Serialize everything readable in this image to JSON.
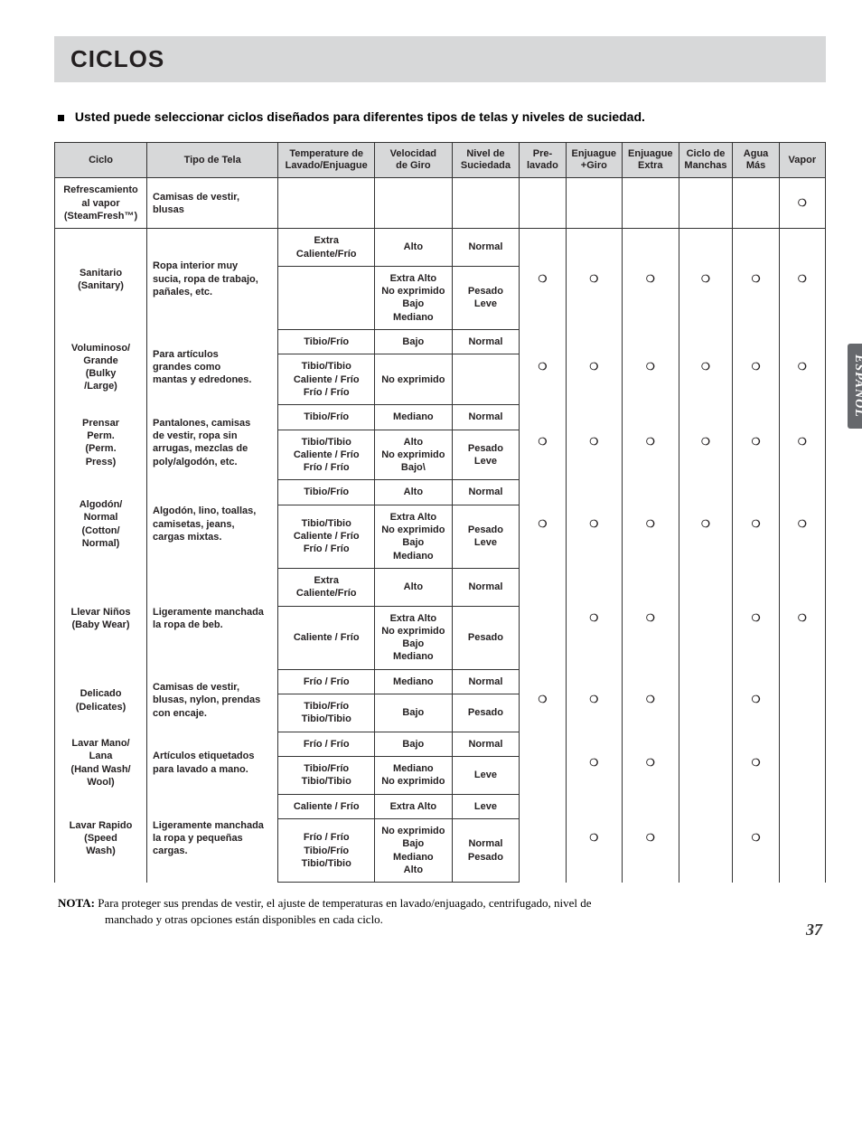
{
  "banner_title": "CICLOS",
  "intro": "Usted puede seleccionar ciclos diseñados para diferentes tipos de telas y niveles de suciedad.",
  "side_tab": "ESPAÑOL",
  "page_number": "37",
  "note_bold": "NOTA:",
  "note_rest": " Para proteger sus prendas de vestir, el ajuste de temperaturas en lavado/enjuagado, centrifugado, nivel de",
  "note_line2": "manchado y otras opciones están disponibles en cada ciclo.",
  "columns": {
    "ciclo": "Ciclo",
    "tela": "Tipo de Tela",
    "temp": "Temperature de\nLavado/Enjuague",
    "speed": "Velocidad\nde Giro",
    "soil": "Nivel de\nSuciedada",
    "prewash": "Pre-\nlavado",
    "rinse_spin": "Enjuague\n+Giro",
    "extra_rinse": "Enjuague\nExtra",
    "stain": "Ciclo de\nManchas",
    "water_plus": "Agua\nMás",
    "steam": "Vapor"
  },
  "radio_char": "❍",
  "rows": [
    {
      "single": true,
      "cycle": "Refrescamiento\nal vapor\n(SteamFresh™)",
      "fabric": "Camisas de vestir,\nblusas",
      "temp": "",
      "speed": "",
      "soil": "",
      "opts": [
        "",
        "",
        "",
        "",
        "",
        "❍"
      ]
    },
    {
      "cycle": "Sanitario\n(Sanitary)",
      "fabric": "Ropa interior muy\nsucia, ropa de trabajo,\npañales, etc.",
      "r1": {
        "temp": "Extra Caliente/Frío",
        "speed": "Alto",
        "soil": "Normal"
      },
      "r2": {
        "temp": "",
        "speed": "Extra Alto\nNo exprimido\nBajo\nMediano",
        "soil": "Pesado\nLeve"
      },
      "opts": [
        "❍",
        "❍",
        "❍",
        "❍",
        "❍",
        "❍"
      ]
    },
    {
      "cycle": "Voluminoso/\nGrande\n(Bulky\n/Large)",
      "fabric": "Para artículos\ngrandes como\nmantas y edredones.",
      "r1": {
        "temp": "Tibio/Frío",
        "speed": "Bajo",
        "soil": "Normal"
      },
      "r2": {
        "temp": "Tibio/Tibio\nCaliente / Frío\nFrío / Frío",
        "speed": "No exprimido",
        "soil": ""
      },
      "opts": [
        "❍",
        "❍",
        "❍",
        "❍",
        "❍",
        "❍"
      ]
    },
    {
      "cycle": "Prensar\nPerm.\n(Perm.\nPress)",
      "fabric": "Pantalones, camisas\nde vestir, ropa sin\narrugas, mezclas de\npoly/algodón, etc.",
      "r1": {
        "temp": "Tibio/Frío",
        "speed": "Mediano",
        "soil": "Normal"
      },
      "r2": {
        "temp": "Tibio/Tibio\nCaliente / Frío\nFrío / Frío",
        "speed": "Alto\nNo exprimido\nBajo\\",
        "soil": "Pesado\nLeve"
      },
      "opts": [
        "❍",
        "❍",
        "❍",
        "❍",
        "❍",
        "❍"
      ]
    },
    {
      "cycle": "Algodón/\nNormal\n(Cotton/\nNormal)",
      "fabric": "Algodón, lino, toallas,\ncamisetas, jeans,\ncargas mixtas.",
      "r1": {
        "temp": "Tibio/Frío",
        "speed": "Alto",
        "soil": "Normal"
      },
      "r2": {
        "temp": "Tibio/Tibio\nCaliente / Frío\nFrío / Frío",
        "speed": "Extra Alto\nNo exprimido\nBajo\nMediano",
        "soil": "Pesado\nLeve"
      },
      "opts": [
        "❍",
        "❍",
        "❍",
        "❍",
        "❍",
        "❍"
      ]
    },
    {
      "cycle": "Llevar Niños\n(Baby Wear)",
      "fabric": "Ligeramente manchada\nla ropa de beb.",
      "r1": {
        "temp": "Extra Caliente/Frío",
        "speed": "Alto",
        "soil": "Normal"
      },
      "r2": {
        "temp": "Caliente / Frío",
        "speed": "Extra Alto\nNo exprimido\nBajo\nMediano",
        "soil": "Pesado"
      },
      "opts": [
        "",
        "❍",
        "❍",
        "",
        "❍",
        "❍"
      ]
    },
    {
      "cycle": "Delicado\n(Delicates)",
      "fabric": "Camisas de vestir,\nblusas, nylon, prendas\ncon encaje.",
      "r1": {
        "temp": "Frío / Frío",
        "speed": "Mediano",
        "soil": "Normal"
      },
      "r2": {
        "temp": "Tibio/Frío\nTibio/Tibio",
        "speed": "Bajo",
        "soil": "Pesado"
      },
      "opts": [
        "❍",
        "❍",
        "❍",
        "",
        "❍",
        ""
      ]
    },
    {
      "cycle": "Lavar Mano/\nLana\n(Hand Wash/\nWool)",
      "fabric": "Artículos etiquetados\npara lavado a mano.",
      "r1": {
        "temp": "Frío / Frío",
        "speed": "Bajo",
        "soil": "Normal"
      },
      "r2": {
        "temp": "Tibio/Frío\nTibio/Tibio",
        "speed": "Mediano\nNo exprimido",
        "soil": "Leve"
      },
      "opts": [
        "",
        "❍",
        "❍",
        "",
        "❍",
        ""
      ]
    },
    {
      "cycle": "Lavar Rapido\n(Speed\nWash)",
      "fabric": "Ligeramente manchada\nla ropa y pequeñas\ncargas.",
      "r1": {
        "temp": "Caliente / Frío",
        "speed": "Extra Alto",
        "soil": "Leve"
      },
      "r2": {
        "temp": "Frío / Frío\nTibio/Frío\nTibio/Tibio",
        "speed": "No exprimido\nBajo\nMediano\nAlto",
        "soil": "Normal\nPesado"
      },
      "opts": [
        "",
        "❍",
        "❍",
        "",
        "❍",
        ""
      ]
    }
  ]
}
